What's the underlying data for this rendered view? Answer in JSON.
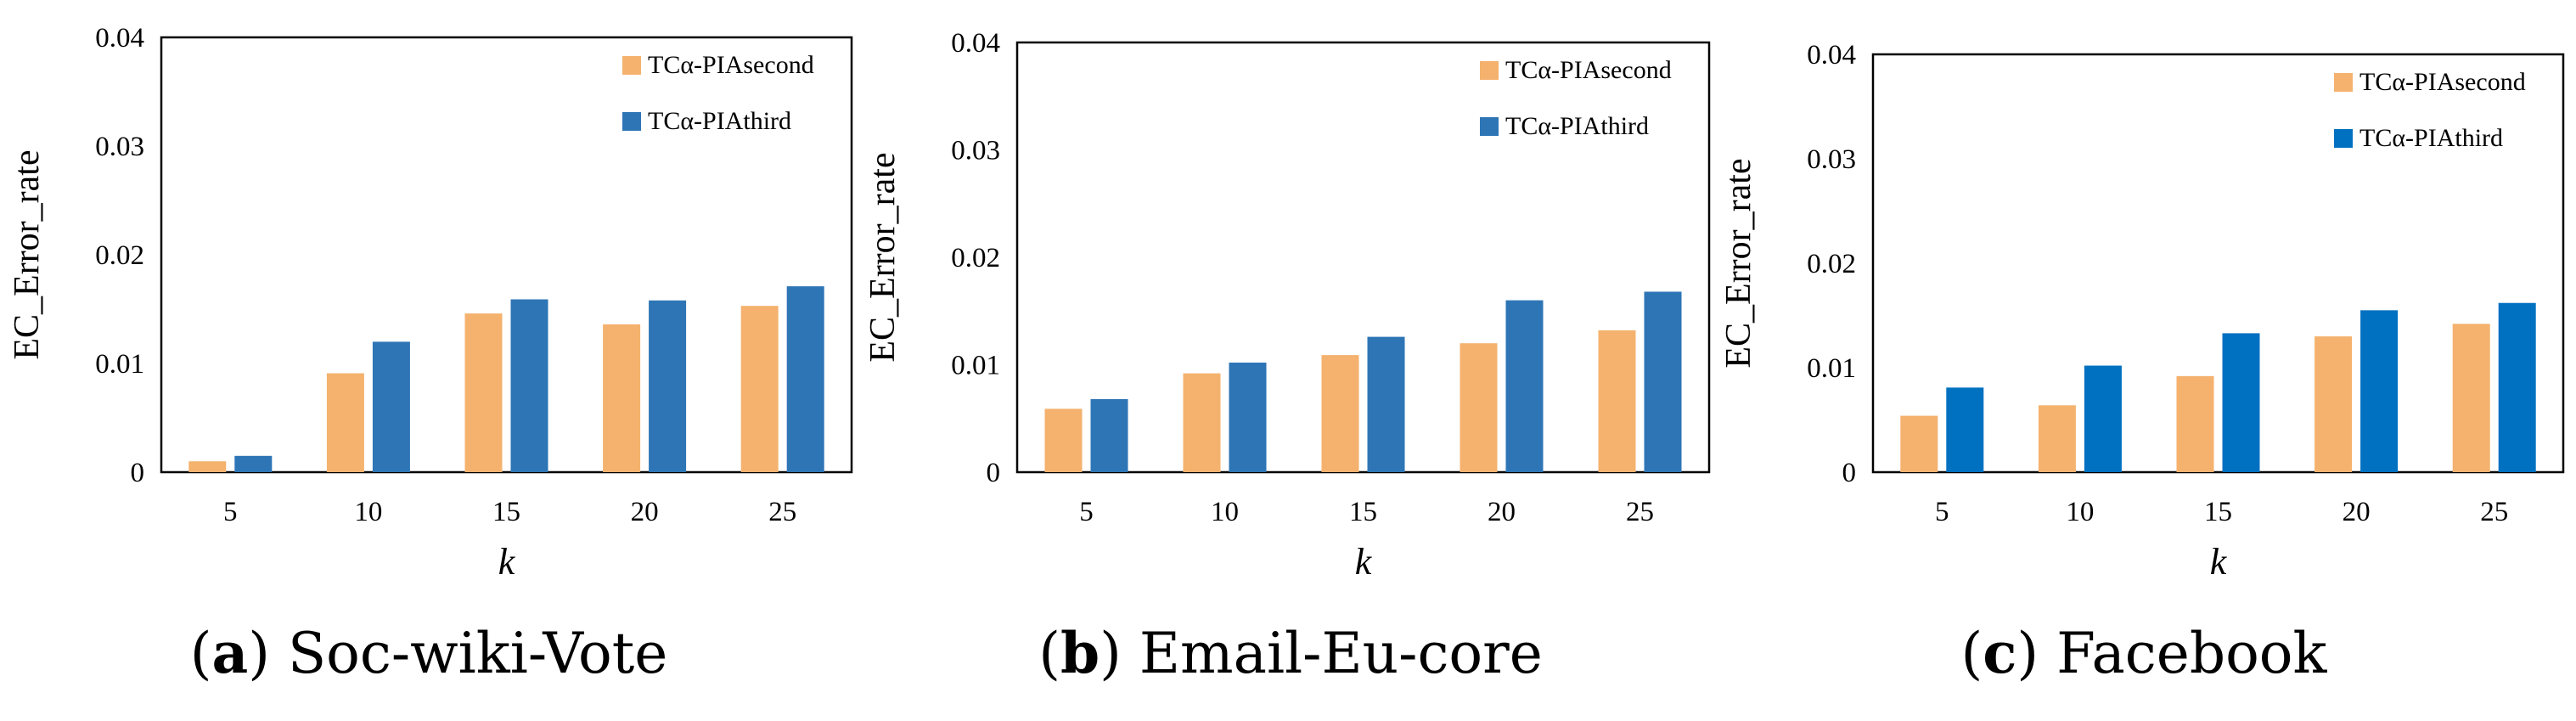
{
  "chart_data": [
    {
      "type": "bar",
      "panel": "(a)",
      "caption_letter": "a",
      "caption_name": "Soc-wiki-Vote",
      "xlabel": "k",
      "ylabel": "EC_Error_rate",
      "ylim": [
        0,
        0.04
      ],
      "yticks": [
        "0",
        "0.01",
        "0.02",
        "0.03",
        "0.04"
      ],
      "categories": [
        "5",
        "10",
        "15",
        "20",
        "25"
      ],
      "legend_position": "top-right",
      "series": [
        {
          "name": "TCα-PIAsecond",
          "color": "#F4B26E",
          "values": [
            0.001,
            0.0091,
            0.0146,
            0.0136,
            0.0153
          ]
        },
        {
          "name": "TCα-PIAthird",
          "color": "#2E75B6",
          "values": [
            0.0015,
            0.012,
            0.0159,
            0.0158,
            0.0171
          ]
        }
      ]
    },
    {
      "type": "bar",
      "panel": "(b)",
      "caption_letter": "b",
      "caption_name": "Email-Eu-core",
      "xlabel": "k",
      "ylabel": "EC_Error_rate",
      "ylim": [
        0,
        0.04
      ],
      "yticks": [
        "0",
        "0.01",
        "0.02",
        "0.03",
        "0.04"
      ],
      "categories": [
        "5",
        "10",
        "15",
        "20",
        "25"
      ],
      "legend_position": "top-right",
      "series": [
        {
          "name": "TCα-PIAsecond",
          "color": "#F4B26E",
          "values": [
            0.0059,
            0.0092,
            0.0109,
            0.012,
            0.0132
          ]
        },
        {
          "name": "TCα-PIAthird",
          "color": "#2E75B6",
          "values": [
            0.0068,
            0.0102,
            0.0126,
            0.016,
            0.0168
          ]
        }
      ]
    },
    {
      "type": "bar",
      "panel": "(c)",
      "caption_letter": "c",
      "caption_name": "Facebook",
      "xlabel": "k",
      "ylabel": "EC_Error_rate",
      "ylim": [
        0,
        0.04
      ],
      "yticks": [
        "0",
        "0.01",
        "0.02",
        "0.03",
        "0.04"
      ],
      "categories": [
        "5",
        "10",
        "15",
        "20",
        "25"
      ],
      "legend_position": "top-right",
      "series": [
        {
          "name": "TCα-PIAsecond",
          "color": "#F4B26E",
          "values": [
            0.0054,
            0.0064,
            0.0092,
            0.013,
            0.0142
          ]
        },
        {
          "name": "TCα-PIAthird",
          "color": "#0070C0",
          "values": [
            0.0081,
            0.0102,
            0.0133,
            0.0155,
            0.0162
          ]
        }
      ]
    }
  ]
}
